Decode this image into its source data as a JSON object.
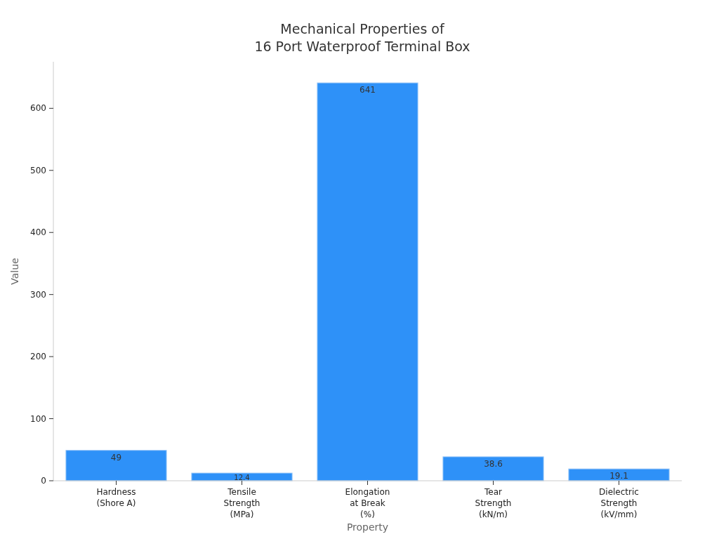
{
  "chart_data": {
    "type": "bar",
    "title": "Mechanical Properties of\n16 Port Waterproof Terminal Box",
    "xlabel": "Property",
    "ylabel": "Value",
    "categories": [
      "Hardness\n(Shore A)",
      "Tensile\nStrength\n(MPa)",
      "Elongation\nat Break\n(%)",
      "Tear\nStrength\n(kN/m)",
      "Dielectric\nStrength\n(kV/mm)"
    ],
    "values": [
      49,
      12.4,
      641,
      38.6,
      19.1
    ],
    "color": "#2e91f8",
    "data_labels": true,
    "ylim": [
      0,
      675
    ],
    "yticks": [
      0,
      100,
      200,
      300,
      400,
      500,
      600
    ],
    "grid": false
  }
}
